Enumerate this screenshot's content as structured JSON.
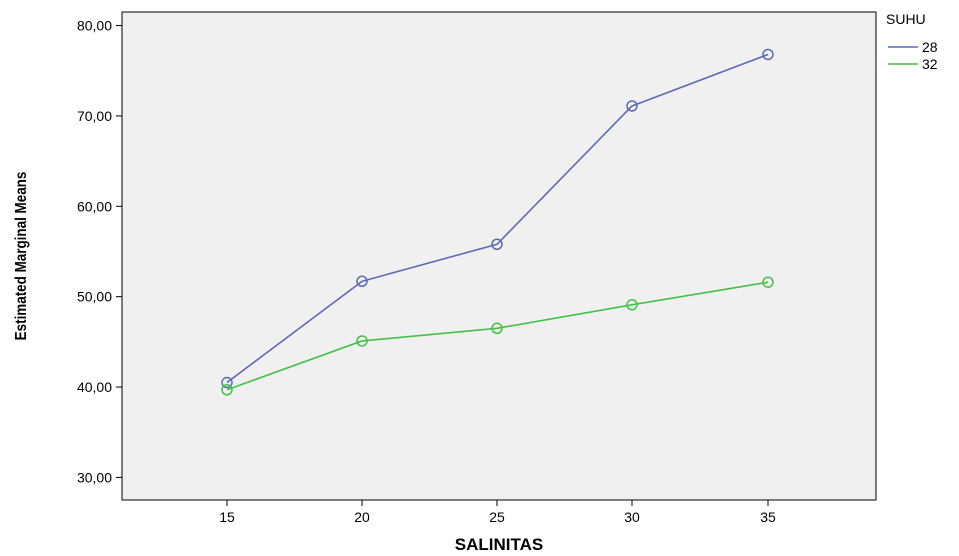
{
  "chart_data": {
    "type": "line",
    "title": "",
    "xlabel": "SALINITAS",
    "ylabel": "Estimated Marginal Means",
    "x": [
      "15",
      "20",
      "25",
      "30",
      "35"
    ],
    "ylim": [
      27.5,
      81.5
    ],
    "yticks": [
      30,
      40,
      50,
      60,
      70,
      80
    ],
    "ytick_labels": [
      "30,00",
      "40,00",
      "50,00",
      "60,00",
      "70,00",
      "80,00"
    ],
    "grid": false,
    "legend": {
      "title": "SUHU",
      "position": "right"
    },
    "series": [
      {
        "name": "28",
        "color": "#5b6bb5",
        "values": [
          40.5,
          51.7,
          55.8,
          71.1,
          76.8
        ]
      },
      {
        "name": "32",
        "color": "#44c04a",
        "values": [
          39.7,
          45.1,
          46.5,
          49.1,
          51.6
        ]
      }
    ]
  }
}
